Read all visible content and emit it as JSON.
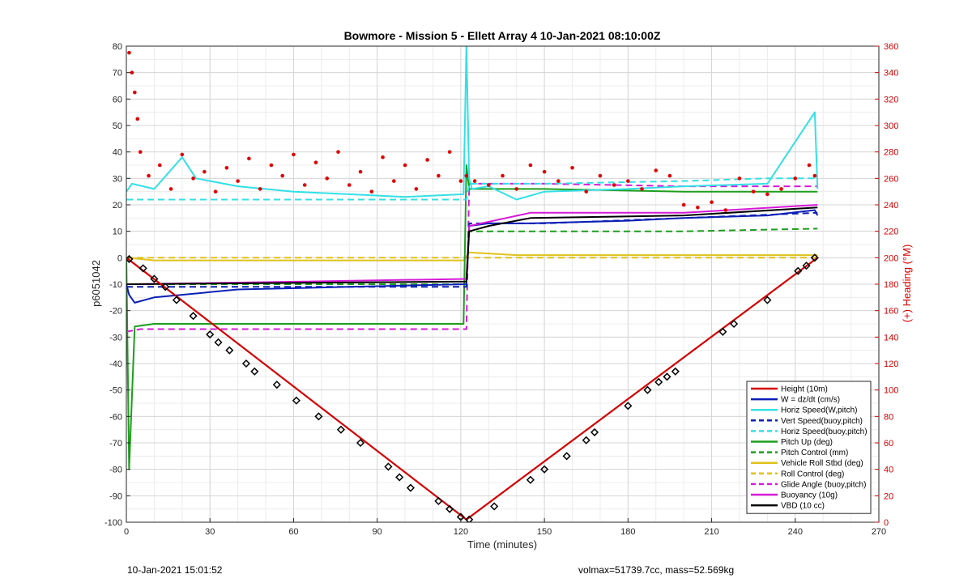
{
  "chart_data": {
    "type": "line",
    "title": "Bowmore - Mission 5 - Ellett Array 4 10-Jan-2021 08:10:00Z",
    "xlabel": "Time (minutes)",
    "ylabel": "p6051042",
    "ylabel_right": "(+) Heading (°M)",
    "xlim": [
      0,
      270
    ],
    "ylim": [
      -100,
      80
    ],
    "ylim_right": [
      0,
      360
    ],
    "xticks": [
      "0",
      "30",
      "60",
      "90",
      "120",
      "150",
      "180",
      "210",
      "240",
      "270"
    ],
    "yticks": [
      "80",
      "70",
      "60",
      "50",
      "40",
      "30",
      "20",
      "10",
      "0",
      "-10",
      "-20",
      "-30",
      "-40",
      "-50",
      "-60",
      "-70",
      "-80",
      "-90",
      "-100"
    ],
    "yticks_right": [
      "360",
      "340",
      "320",
      "300",
      "280",
      "260",
      "240",
      "220",
      "200",
      "180",
      "160",
      "140",
      "120",
      "100",
      "80",
      "60",
      "40",
      "20",
      "0"
    ],
    "grid": true,
    "legend_position": "bottom-right",
    "colors": {
      "height": "#d40000",
      "w": "#0b1fb5",
      "horiz_w": "#33e0e6",
      "vert_buoy": "#0b1fb5",
      "horiz_buoy": "#33e0e6",
      "pitch_up": "#1e9e1e",
      "pitch_ctl": "#1e9e1e",
      "roll": "#e0c21a",
      "roll_ctl": "#e0c21a",
      "glide": "#d81ad8",
      "buoyancy": "#d81ad8",
      "vbd": "#000000",
      "heading": "#e00000"
    },
    "series": [
      {
        "name": "Height (10m)",
        "key": "height",
        "style": "solid",
        "x": [
          0,
          122,
          248
        ],
        "y": [
          0,
          -99,
          0
        ]
      },
      {
        "name": "W = dz/dt (cm/s)",
        "key": "w",
        "style": "solid",
        "x": [
          0,
          1,
          3,
          10,
          20,
          40,
          80,
          122,
          123,
          130,
          145,
          180,
          200,
          230,
          247,
          248
        ],
        "y": [
          -10,
          -14,
          -17,
          -15,
          -14,
          -12,
          -11,
          -10,
          12,
          13,
          13,
          14,
          15,
          16,
          18,
          16
        ]
      },
      {
        "name": "Horiz Speed(W,pitch)",
        "key": "horiz_w",
        "style": "solid",
        "x": [
          0,
          2,
          10,
          20,
          25,
          40,
          60,
          80,
          100,
          121,
          122,
          123,
          124,
          130,
          140,
          150,
          180,
          200,
          230,
          247,
          248
        ],
        "y": [
          25,
          28,
          26,
          38,
          30,
          27,
          25,
          24,
          23,
          24,
          80,
          30,
          26,
          27,
          22,
          25,
          26,
          27,
          28,
          55,
          26
        ]
      },
      {
        "name": "Vert Speed(buoy,pitch)",
        "key": "vert_buoy",
        "style": "dashed",
        "x": [
          0,
          5,
          20,
          60,
          100,
          122,
          123,
          150,
          200,
          248
        ],
        "y": [
          -11,
          -11,
          -11,
          -11,
          -11,
          -11,
          13,
          13,
          15,
          17
        ]
      },
      {
        "name": "Horiz Speed(buoy,pitch)",
        "key": "horiz_buoy",
        "style": "dashed",
        "x": [
          0,
          30,
          60,
          90,
          122,
          123,
          150,
          200,
          230,
          248
        ],
        "y": [
          22,
          22,
          22,
          22,
          22,
          28,
          28,
          29,
          30,
          30
        ]
      },
      {
        "name": "Pitch Up (deg)",
        "key": "pitch_up",
        "style": "solid",
        "x": [
          0,
          1,
          3,
          10,
          40,
          80,
          121,
          122,
          123,
          150,
          200,
          248
        ],
        "y": [
          0,
          -80,
          -26,
          -25,
          -25,
          -25,
          -25,
          35,
          26,
          26,
          25,
          25
        ]
      },
      {
        "name": "Pitch Control (mm)",
        "key": "pitch_ctl",
        "style": "dashed",
        "x": [
          0,
          2,
          5,
          60,
          122,
          123,
          140,
          200,
          248
        ],
        "y": [
          -10,
          -10,
          -10,
          -10,
          -10,
          10,
          10,
          10,
          11
        ]
      },
      {
        "name": "Vehicle Roll Stbd (deg)",
        "key": "roll",
        "style": "solid",
        "x": [
          0,
          10,
          20,
          40,
          60,
          80,
          100,
          121,
          123,
          140,
          160,
          200,
          248
        ],
        "y": [
          0,
          -1,
          -1,
          -1,
          -1,
          -1,
          -1,
          -1,
          2,
          1,
          1,
          1,
          1
        ]
      },
      {
        "name": "Roll Control (deg)",
        "key": "roll_ctl",
        "style": "dashed",
        "x": [
          0,
          20,
          60,
          100,
          121,
          123,
          160,
          200,
          248
        ],
        "y": [
          0,
          0,
          0,
          0,
          0,
          0,
          0,
          0,
          0
        ]
      },
      {
        "name": "Glide Angle (buoy,pitch)",
        "key": "glide",
        "style": "dashed",
        "x": [
          0,
          5,
          60,
          122,
          123,
          150,
          200,
          248
        ],
        "y": [
          -28,
          -27,
          -27,
          -27,
          28,
          28,
          27,
          27
        ]
      },
      {
        "name": "Buoyancy (10g)",
        "key": "buoyancy",
        "style": "solid",
        "x": [
          0,
          3,
          122,
          123,
          145,
          200,
          248
        ],
        "y": [
          -10,
          -10,
          -8,
          12,
          17,
          17,
          20
        ]
      },
      {
        "name": "VBD (10 cc)",
        "key": "vbd",
        "style": "solid",
        "x": [
          0,
          2,
          122,
          123,
          130,
          145,
          200,
          248
        ],
        "y": [
          -10,
          -10,
          -9,
          10,
          12,
          15,
          16,
          19
        ]
      }
    ],
    "heading_series": {
      "x": [
        1,
        2,
        3,
        4,
        5,
        8,
        12,
        16,
        20,
        24,
        28,
        32,
        36,
        40,
        44,
        48,
        52,
        56,
        60,
        64,
        68,
        72,
        76,
        80,
        84,
        88,
        92,
        96,
        100,
        104,
        108,
        112,
        116,
        120,
        122,
        125,
        130,
        135,
        140,
        145,
        150,
        155,
        160,
        165,
        170,
        175,
        180,
        185,
        190,
        195,
        200,
        205,
        210,
        215,
        220,
        225,
        230,
        235,
        240,
        245,
        247
      ],
      "y": [
        355,
        340,
        325,
        305,
        280,
        262,
        270,
        252,
        278,
        260,
        265,
        250,
        268,
        258,
        275,
        252,
        270,
        262,
        278,
        255,
        272,
        260,
        280,
        255,
        265,
        250,
        276,
        258,
        270,
        252,
        274,
        262,
        280,
        258,
        262,
        258,
        255,
        262,
        252,
        270,
        265,
        258,
        268,
        250,
        262,
        255,
        258,
        252,
        266,
        262,
        240,
        238,
        242,
        236,
        260,
        250,
        248,
        252,
        260,
        270,
        262
      ]
    },
    "markers": {
      "x": [
        1,
        6,
        10,
        14,
        18,
        24,
        30,
        33,
        37,
        43,
        46,
        54,
        61,
        69,
        77,
        84,
        94,
        98,
        102,
        112,
        116,
        120,
        123,
        132,
        145,
        150,
        158,
        165,
        168,
        180,
        187,
        191,
        194,
        197,
        214,
        218,
        230,
        241,
        244,
        247
      ],
      "y": [
        -0.5,
        -4,
        -8,
        -11,
        -16,
        -22,
        -29,
        -32,
        -35,
        -40,
        -43,
        -48,
        -54,
        -60,
        -65,
        -70,
        -79,
        -83,
        -87,
        -92,
        -95,
        -98,
        -99,
        -94,
        -84,
        -80,
        -75,
        -69,
        -66,
        -56,
        -50,
        -47,
        -45,
        -43,
        -28,
        -25,
        -16,
        -5,
        -3,
        0
      ]
    }
  },
  "footer": {
    "timestamp": "10-Jan-2021 15:01:52",
    "summary": "volmax=51739.7cc, mass=52.569kg"
  }
}
